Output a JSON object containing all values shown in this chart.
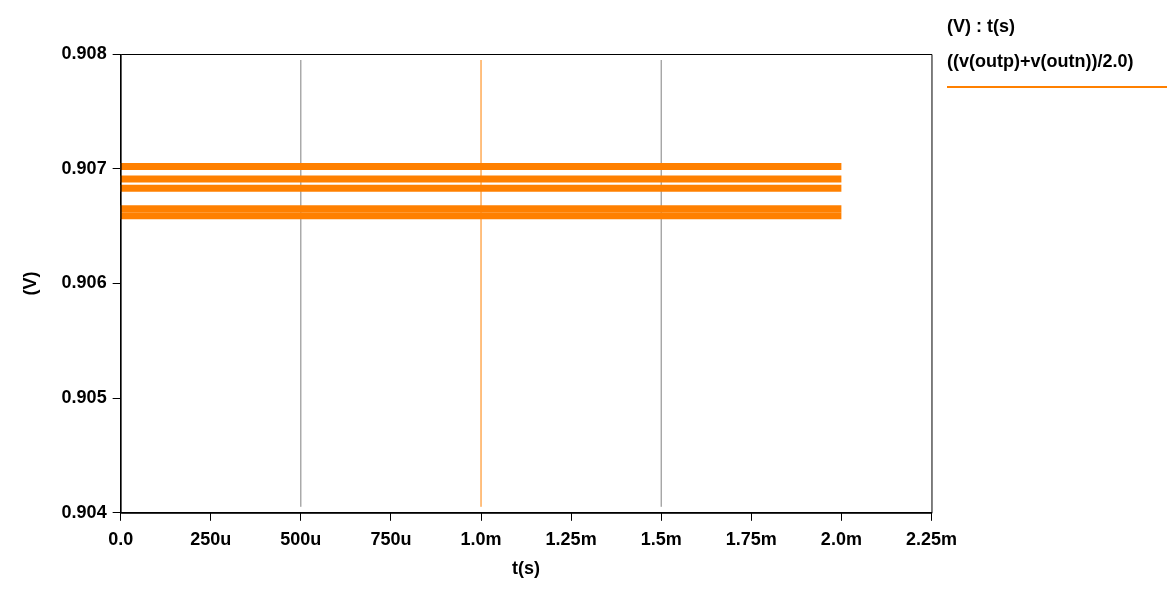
{
  "chart_data": {
    "type": "line",
    "xlabel": "t(s)",
    "ylabel": "(V)",
    "legend_title": "(V) : t(s)",
    "legend": "right",
    "grid": false,
    "marker": "none",
    "line_style": "solid",
    "categories": [
      "0.0",
      "250u",
      "500u",
      "750u",
      "1.0m",
      "1.25m",
      "1.5m",
      "1.75m",
      "2.0m",
      "2.25m"
    ],
    "ylim": [
      0.904,
      0.908
    ],
    "yticks": [
      0.904,
      0.905,
      0.906,
      0.907,
      0.908
    ],
    "series": [
      {
        "name": "((v(outp)+v(outn))/2.0)",
        "color": "#ff8000",
        "values": [
          0.90702,
          0.90702,
          0.90702,
          0.90702,
          0.90702,
          0.90702,
          0.90702,
          0.90702,
          0.90702,
          null
        ]
      },
      {
        "color": "#ff8000",
        "values": [
          0.90691,
          0.90691,
          0.90691,
          0.90691,
          0.90691,
          0.90691,
          0.90691,
          0.90691,
          0.90691,
          null
        ]
      },
      {
        "color": "#ff8000",
        "values": [
          0.90683,
          0.90683,
          0.90683,
          0.90683,
          0.90683,
          0.90683,
          0.90683,
          0.90683,
          0.90683,
          null
        ]
      },
      {
        "color": "#ff8000",
        "values": [
          0.90665,
          0.90665,
          0.90665,
          0.90665,
          0.90665,
          0.90665,
          0.90665,
          0.90665,
          0.90665,
          null
        ]
      },
      {
        "color": "#ff8000",
        "values": [
          0.90659,
          0.90659,
          0.90659,
          0.90659,
          0.90659,
          0.90659,
          0.90659,
          0.90659,
          0.90659,
          null
        ]
      }
    ],
    "ref_lines": [
      {
        "axis": "x",
        "value": "500u",
        "color": "#808080"
      },
      {
        "axis": "x",
        "value": "1.0m",
        "color": "#ff8000"
      },
      {
        "axis": "x",
        "value": "1.5m",
        "color": "#808080"
      }
    ]
  }
}
